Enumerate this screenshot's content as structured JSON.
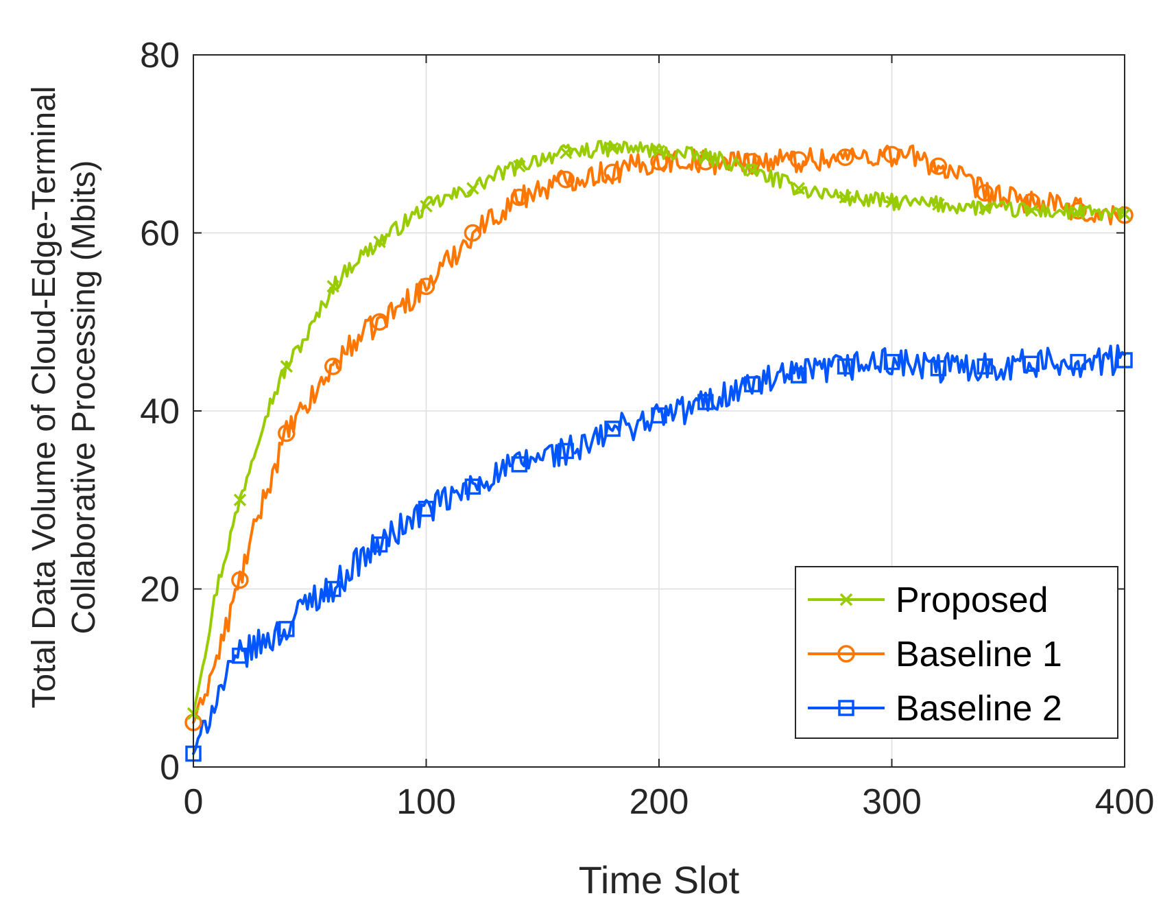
{
  "chart_data": {
    "type": "line",
    "title": "",
    "xlabel": "Time Slot",
    "ylabel_lines": [
      "Total Data Volume of Cloud-Edge-Terminal",
      "Collaborative Processing (Mbits)"
    ],
    "xlim": [
      0,
      400
    ],
    "ylim": [
      0,
      80
    ],
    "x_ticks": [
      0,
      100,
      200,
      300,
      400
    ],
    "y_ticks": [
      0,
      20,
      40,
      60,
      80
    ],
    "x_tick_labels": [
      "0",
      "100",
      "200",
      "300",
      "400"
    ],
    "y_tick_labels": [
      "0",
      "20",
      "40",
      "60",
      "80"
    ],
    "grid": true,
    "legend_position": "bottom-right",
    "x": [
      0,
      10,
      20,
      30,
      40,
      50,
      60,
      70,
      80,
      90,
      100,
      110,
      120,
      130,
      140,
      150,
      160,
      170,
      180,
      190,
      200,
      210,
      220,
      230,
      240,
      250,
      260,
      270,
      280,
      290,
      300,
      310,
      320,
      330,
      340,
      350,
      360,
      370,
      380,
      390,
      400
    ],
    "series": [
      {
        "name": "Proposed",
        "color": "#99CC00",
        "marker": "x",
        "values": [
          6,
          20,
          30,
          39,
          45,
          49,
          54,
          57,
          59,
          61,
          63,
          64,
          65,
          66.5,
          67.5,
          68.5,
          69,
          69.3,
          69.5,
          69.5,
          69.2,
          68.8,
          68.5,
          68,
          67,
          66,
          65,
          64.5,
          64,
          63.7,
          63.5,
          63.3,
          63.2,
          63,
          62.8,
          62.6,
          62.5,
          62.4,
          62.3,
          62.2,
          62.1
        ]
      },
      {
        "name": "Baseline 1",
        "color": "#FF7700",
        "marker": "o",
        "values": [
          5,
          12,
          21,
          30,
          37.5,
          41,
          45,
          48,
          50,
          52,
          54,
          57,
          60,
          62,
          64,
          65,
          66,
          66.5,
          66.8,
          67.5,
          68,
          68.2,
          68,
          68,
          68,
          68.1,
          68.2,
          68.3,
          68.5,
          68.7,
          68.8,
          68.5,
          67.5,
          66,
          64.5,
          63.8,
          63.5,
          63,
          62.5,
          62,
          62
        ]
      },
      {
        "name": "Baseline 2",
        "color": "#0055FF",
        "marker": "s",
        "values": [
          1.5,
          8,
          12.5,
          14,
          15.5,
          19,
          20,
          23,
          25,
          27,
          29,
          30,
          31.5,
          33,
          34,
          35,
          35.5,
          36,
          38,
          38.5,
          39.5,
          40,
          41,
          42,
          43,
          43.5,
          44,
          44.5,
          45,
          45.3,
          45.5,
          45,
          44.8,
          45,
          45,
          45.2,
          45.3,
          45.4,
          45.5,
          45.6,
          45.7
        ]
      }
    ]
  }
}
